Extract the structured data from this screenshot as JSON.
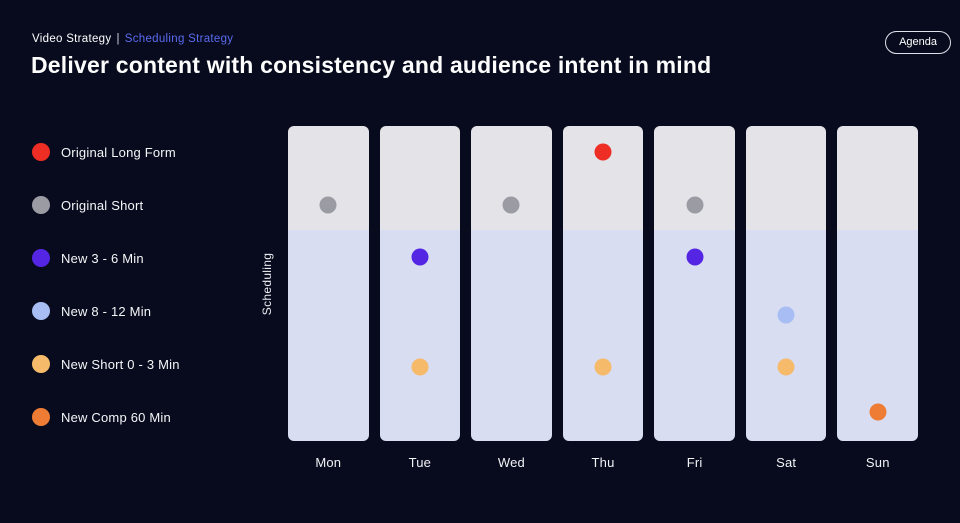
{
  "breadcrumb": {
    "section": "Video Strategy",
    "separator": "|",
    "current": "Scheduling Strategy"
  },
  "title": "Deliver content with consistency and audience intent in mind",
  "agenda_button": {
    "label": "Agenda"
  },
  "colors": {
    "background": "#070b1d",
    "accent_breadcrumb": "#5b6bf0",
    "column_top_zone": "#e3e3e8",
    "column_bottom_zone": "#d8ddf1"
  },
  "legend": [
    {
      "label": "Original Long Form",
      "color": "#ee2e24"
    },
    {
      "label": "Original Short",
      "color": "#9b9ba3"
    },
    {
      "label": "New 3 - 6 Min",
      "color": "#5426e4"
    },
    {
      "label": "New 8 - 12 Min",
      "color": "#a7bdf3"
    },
    {
      "label": "New Short 0 - 3 Min",
      "color": "#f6ba6b"
    },
    {
      "label": "New Comp 60 Min",
      "color": "#ee7c34"
    }
  ],
  "chart_data": {
    "type": "scatter",
    "title": "",
    "xlabel": "",
    "ylabel": "Scheduling",
    "categories": [
      "Mon",
      "Tue",
      "Wed",
      "Thu",
      "Fri",
      "Sat",
      "Sun"
    ],
    "zones": [
      {
        "name": "top",
        "color": "#e3e3e8",
        "height_frac": 0.33
      },
      {
        "name": "bottom",
        "color": "#d8ddf1",
        "height_frac": 0.67
      }
    ],
    "points": [
      {
        "day": "Mon",
        "series": "Original Short",
        "level": 0.25
      },
      {
        "day": "Tue",
        "series": "New 3 - 6 Min",
        "level": 0.415
      },
      {
        "day": "Tue",
        "series": "New Short 0 - 3 Min",
        "level": 0.765
      },
      {
        "day": "Wed",
        "series": "Original Short",
        "level": 0.25
      },
      {
        "day": "Thu",
        "series": "Original Long Form",
        "level": 0.083
      },
      {
        "day": "Thu",
        "series": "New Short 0 - 3 Min",
        "level": 0.765
      },
      {
        "day": "Fri",
        "series": "Original Short",
        "level": 0.25
      },
      {
        "day": "Fri",
        "series": "New 3 - 6 Min",
        "level": 0.415
      },
      {
        "day": "Sat",
        "series": "New 8 - 12 Min",
        "level": 0.6
      },
      {
        "day": "Sat",
        "series": "New Short 0 - 3 Min",
        "level": 0.765
      },
      {
        "day": "Sun",
        "series": "New Comp 60 Min",
        "level": 0.908
      }
    ],
    "legend_position": "left",
    "grid": false
  }
}
